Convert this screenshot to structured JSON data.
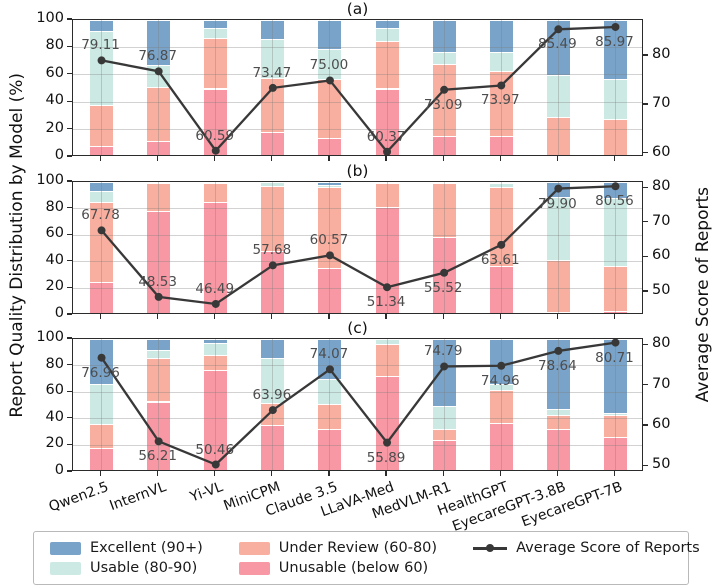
{
  "figure": {
    "left_axis_label": "Report Quality Distribution by Model (%)",
    "right_axis_label": "Average Score of Reports",
    "colors": {
      "excellent": "#79A3C9",
      "usable": "#CCEAE3",
      "under_review": "#F9AF9F",
      "unusable": "#F898A4",
      "line": "#383838",
      "grid": "#D6D6D6"
    },
    "legend": {
      "items": [
        {
          "label": "Excellent (90+)",
          "swatch": "excellent"
        },
        {
          "label": "Usable (80-90)",
          "swatch": "usable"
        },
        {
          "label": "Under Review (60-80)",
          "swatch": "under_review"
        },
        {
          "label": "Unusable (below 60)",
          "swatch": "unusable"
        },
        {
          "label": "Average Score of Reports",
          "swatch": "line-marker"
        }
      ]
    }
  },
  "chart_data": [
    {
      "type": "bar",
      "variant": "stacked-percent-with-line",
      "title": "(a)",
      "categories": [
        "Qwen2.5",
        "InternVL",
        "Yi-VL",
        "MiniCPM",
        "Claude 3.5",
        "LLaVA-Med",
        "MedVLM-R1",
        "HealthGPT",
        "EyecareGPT-3.8B",
        "EyecareGPT-7B"
      ],
      "left_axis": {
        "ticks": [
          0,
          20,
          40,
          60,
          80,
          100
        ],
        "unit": "%"
      },
      "right_axis": {
        "min": 59.3,
        "max": 87.4,
        "ticks": [
          60,
          70,
          80
        ]
      },
      "series": [
        {
          "name": "Unusable (below 60)",
          "color_key": "unusable",
          "values": [
            8,
            12,
            50,
            18,
            14,
            50,
            15,
            15,
            0,
            0
          ]
        },
        {
          "name": "Under Review (60-80)",
          "color_key": "under_review",
          "values": [
            30,
            39,
            37,
            40,
            43,
            35,
            53,
            48,
            29,
            28
          ]
        },
        {
          "name": "Usable (80-90)",
          "color_key": "usable",
          "values": [
            54,
            16,
            7,
            28,
            22,
            9,
            9,
            14,
            31,
            29
          ]
        },
        {
          "name": "Excellent (90+)",
          "color_key": "excellent",
          "values": [
            8,
            33,
            6,
            14,
            21,
            6,
            23,
            23,
            40,
            43
          ]
        }
      ],
      "line": {
        "name": "Average Score of Reports",
        "values": [
          79.11,
          76.87,
          60.59,
          73.47,
          75.0,
          60.37,
          73.09,
          73.97,
          85.49,
          85.97
        ],
        "label_side": [
          "above",
          "above",
          "above",
          "above",
          "above",
          "above",
          "below",
          "below",
          "below",
          "below"
        ]
      }
    },
    {
      "type": "bar",
      "variant": "stacked-percent-with-line",
      "title": "(b)",
      "categories": [
        "Qwen2.5",
        "InternVL",
        "Yi-VL",
        "MiniCPM",
        "Claude 3.5",
        "LLaVA-Med",
        "MedVLM-R1",
        "HealthGPT",
        "EyecareGPT-3.8B",
        "EyecareGPT-7B"
      ],
      "left_axis": {
        "ticks": [
          0,
          20,
          40,
          60,
          80,
          100
        ],
        "unit": "%"
      },
      "right_axis": {
        "min": 43.3,
        "max": 81.8,
        "ticks": [
          50,
          60,
          70,
          80
        ]
      },
      "series": [
        {
          "name": "Unusable (below 60)",
          "color_key": "unusable",
          "values": [
            25,
            78,
            85,
            48,
            35,
            81,
            59,
            37,
            2,
            3
          ]
        },
        {
          "name": "Under Review (60-80)",
          "color_key": "under_review",
          "values": [
            60,
            21,
            14,
            49,
            61,
            18,
            40,
            59,
            39,
            34
          ]
        },
        {
          "name": "Usable (80-90)",
          "color_key": "usable",
          "values": [
            8,
            0,
            0,
            3,
            2,
            0,
            0,
            3,
            48,
            51
          ]
        },
        {
          "name": "Excellent (90+)",
          "color_key": "excellent",
          "values": [
            7,
            0,
            0,
            0,
            2,
            1,
            1,
            1,
            11,
            12
          ]
        }
      ],
      "line": {
        "name": "Average Score of Reports",
        "values": [
          67.78,
          48.53,
          46.49,
          57.68,
          60.57,
          51.34,
          55.52,
          63.61,
          79.9,
          80.56
        ],
        "label_side": [
          "above",
          "above",
          "above",
          "above",
          "above",
          "below",
          "below",
          "below",
          "below",
          "below"
        ]
      }
    },
    {
      "type": "bar",
      "variant": "stacked-percent-with-line",
      "title": "(c)",
      "categories": [
        "Qwen2.5",
        "InternVL",
        "Yi-VL",
        "MiniCPM",
        "Claude 3.5",
        "LLaVA-Med",
        "MedVLM-R1",
        "HealthGPT",
        "EyecareGPT-3.8B",
        "EyecareGPT-7B"
      ],
      "left_axis": {
        "ticks": [
          0,
          20,
          40,
          60,
          80,
          100
        ],
        "unit": "%"
      },
      "right_axis": {
        "min": 48.6,
        "max": 81.6,
        "ticks": [
          50,
          60,
          70,
          80
        ]
      },
      "series": [
        {
          "name": "Unusable (below 60)",
          "color_key": "unusable",
          "values": [
            18,
            53,
            77,
            35,
            32,
            72,
            24,
            37,
            32,
            26
          ]
        },
        {
          "name": "Under Review (60-80)",
          "color_key": "under_review",
          "values": [
            18,
            33,
            11,
            17,
            19,
            24,
            8,
            25,
            11,
            17
          ]
        },
        {
          "name": "Usable (80-90)",
          "color_key": "usable",
          "values": [
            30,
            6,
            9,
            34,
            19,
            4,
            18,
            4,
            4,
            1
          ]
        },
        {
          "name": "Excellent (90+)",
          "color_key": "excellent",
          "values": [
            34,
            8,
            3,
            14,
            30,
            0,
            50,
            34,
            53,
            56
          ]
        }
      ],
      "line": {
        "name": "Average Score of Reports",
        "values": [
          76.96,
          56.21,
          50.46,
          63.96,
          74.07,
          55.89,
          74.79,
          74.96,
          78.64,
          80.71
        ],
        "label_side": [
          "below",
          "below",
          "above",
          "above",
          "above",
          "below",
          "above",
          "below",
          "below",
          "below"
        ]
      }
    }
  ]
}
